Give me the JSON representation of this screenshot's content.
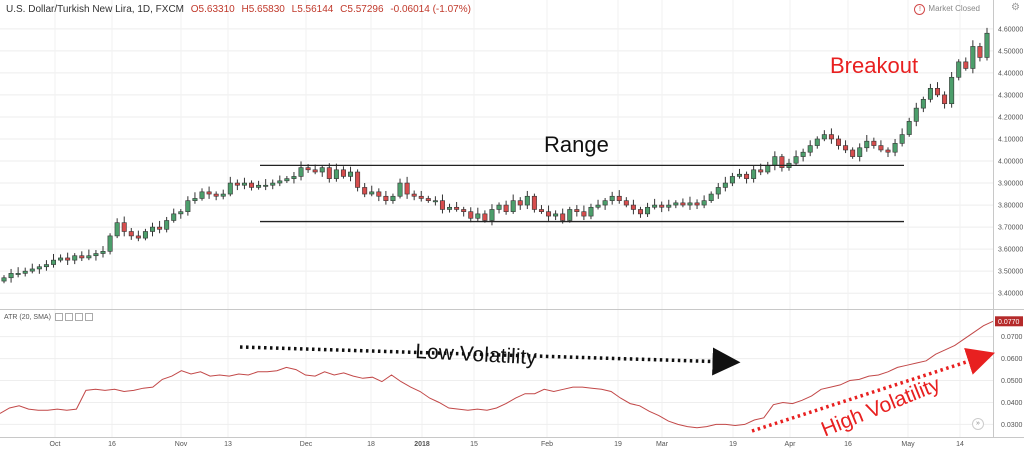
{
  "header": {
    "symbol": "U.S. Dollar/Turkish New Lira, 1D, FXCM",
    "open": "O5.63310",
    "high": "H5.65830",
    "low": "L5.56144",
    "close": "C5.57296",
    "change": "-0.06014 (-1.07%)"
  },
  "market_status": "Market Closed",
  "indicator_label": "ATR (20, SMA)",
  "annotations": {
    "range": "Range",
    "breakout": "Breakout",
    "low_volatility": "Low Volatility",
    "high_volatility": "High Volatility"
  },
  "colors": {
    "up": "#4c9e6b",
    "down": "#d64d4d",
    "atr_line": "#c24848",
    "arrow_low": "#111111",
    "arrow_high": "#e82020",
    "badge": "#b52a2a"
  },
  "chart_data": [
    {
      "type": "candlestick",
      "title": "U.S. Dollar/Turkish New Lira, 1D, FXCM",
      "ylim": [
        3.36,
        4.64
      ],
      "y_ticks": [
        "4.60000",
        "4.50000",
        "4.40000",
        "4.30000",
        "4.20000",
        "4.10000",
        "4.00000",
        "3.90000",
        "3.80000",
        "3.70000",
        "3.60000",
        "3.50000",
        "3.40000"
      ],
      "x_ticks": [
        "Oct",
        "16",
        "Nov",
        "13",
        "Dec",
        "18",
        "2018",
        "15",
        "Feb",
        "19",
        "Mar",
        "19",
        "Apr",
        "16",
        "May",
        "14"
      ],
      "range_levels": [
        3.98,
        3.725
      ],
      "closes": [
        3.47,
        3.49,
        3.49,
        3.5,
        3.51,
        3.52,
        3.53,
        3.55,
        3.56,
        3.55,
        3.57,
        3.56,
        3.57,
        3.58,
        3.59,
        3.66,
        3.72,
        3.68,
        3.66,
        3.65,
        3.68,
        3.7,
        3.69,
        3.73,
        3.76,
        3.77,
        3.82,
        3.83,
        3.86,
        3.85,
        3.84,
        3.85,
        3.9,
        3.89,
        3.9,
        3.88,
        3.89,
        3.89,
        3.9,
        3.91,
        3.92,
        3.93,
        3.97,
        3.96,
        3.95,
        3.97,
        3.92,
        3.96,
        3.93,
        3.95,
        3.88,
        3.85,
        3.86,
        3.84,
        3.82,
        3.84,
        3.9,
        3.85,
        3.84,
        3.83,
        3.82,
        3.82,
        3.78,
        3.79,
        3.78,
        3.77,
        3.74,
        3.76,
        3.73,
        3.78,
        3.8,
        3.77,
        3.82,
        3.8,
        3.84,
        3.78,
        3.77,
        3.75,
        3.76,
        3.73,
        3.78,
        3.77,
        3.75,
        3.79,
        3.8,
        3.82,
        3.84,
        3.82,
        3.8,
        3.78,
        3.76,
        3.79,
        3.8,
        3.79,
        3.8,
        3.81,
        3.8,
        3.81,
        3.8,
        3.82,
        3.85,
        3.88,
        3.9,
        3.93,
        3.94,
        3.92,
        3.96,
        3.95,
        3.98,
        4.02,
        3.97,
        3.99,
        4.02,
        4.04,
        4.07,
        4.1,
        4.12,
        4.1,
        4.07,
        4.05,
        4.02,
        4.06,
        4.09,
        4.07,
        4.05,
        4.04,
        4.08,
        4.12,
        4.18,
        4.24,
        4.28,
        4.33,
        4.3,
        4.26,
        4.38,
        4.45,
        4.42,
        4.52,
        4.47,
        4.58
      ]
    },
    {
      "type": "line",
      "name": "ATR (20, SMA)",
      "ylim": [
        0.027,
        0.0785
      ],
      "y_ticks": [
        "0.0700",
        "0.0600",
        "0.0500",
        "0.0400",
        "0.0300"
      ],
      "last_value": "0.0770",
      "values": [
        0.035,
        0.0375,
        0.0385,
        0.037,
        0.0365,
        0.0365,
        0.037,
        0.0365,
        0.037,
        0.0455,
        0.046,
        0.0455,
        0.046,
        0.045,
        0.0455,
        0.0465,
        0.047,
        0.0505,
        0.052,
        0.0545,
        0.053,
        0.054,
        0.052,
        0.0525,
        0.052,
        0.053,
        0.0525,
        0.054,
        0.054,
        0.0545,
        0.056,
        0.055,
        0.0525,
        0.052,
        0.054,
        0.0525,
        0.0535,
        0.052,
        0.051,
        0.0515,
        0.0495,
        0.0525,
        0.0495,
        0.047,
        0.045,
        0.042,
        0.04,
        0.0375,
        0.037,
        0.0365,
        0.037,
        0.0365,
        0.0375,
        0.0395,
        0.042,
        0.044,
        0.044,
        0.046,
        0.045,
        0.046,
        0.047,
        0.047,
        0.0465,
        0.046,
        0.045,
        0.042,
        0.0395,
        0.0385,
        0.036,
        0.034,
        0.0315,
        0.03,
        0.029,
        0.0285,
        0.029,
        0.03,
        0.03,
        0.0295,
        0.03,
        0.032,
        0.033,
        0.039,
        0.04,
        0.0395,
        0.041,
        0.043,
        0.046,
        0.047,
        0.048,
        0.05,
        0.0505,
        0.052,
        0.0525,
        0.054,
        0.056,
        0.057,
        0.058,
        0.059,
        0.062,
        0.064,
        0.066,
        0.069,
        0.072,
        0.075,
        0.077
      ]
    }
  ]
}
